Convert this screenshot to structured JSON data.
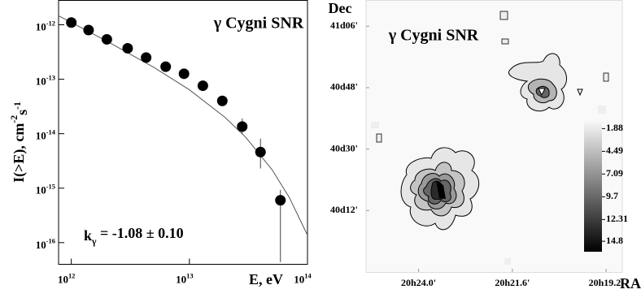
{
  "chart_data": [
    {
      "type": "scatter",
      "title": "γ Cygni SNR",
      "x_label": "E, eV",
      "y_label": [
        "I(>E), cm",
        "-2",
        "s",
        "-1"
      ],
      "annotation": [
        "k",
        "γ",
        " = -1.08 ± 0.10"
      ],
      "log_x": true,
      "log_y": true,
      "color": "#000000",
      "xlim": [
        780000000000.0,
        100000000000000.0
      ],
      "ylim": [
        4e-17,
        2.8e-12
      ],
      "xticks": [
        {
          "value": 1000000000000.0,
          "label": "10",
          "sup": "12"
        },
        {
          "value": 10000000000000.0,
          "label": "10",
          "sup": "13"
        },
        {
          "value": 100000000000000.0,
          "label": "10",
          "sup": "14"
        }
      ],
      "yticks": [
        {
          "value": 1e-12,
          "label": "10",
          "sup": "-12"
        },
        {
          "value": 1e-13,
          "label": "10",
          "sup": "-13"
        },
        {
          "value": 1e-14,
          "label": "10",
          "sup": "-14"
        },
        {
          "value": 1e-15,
          "label": "10",
          "sup": "-15"
        },
        {
          "value": 1e-16,
          "label": "10",
          "sup": "-16"
        }
      ],
      "x": [
        1000000000000.0,
        1400000000000.0,
        2000000000000.0,
        3000000000000.0,
        4300000000000.0,
        6300000000000.0,
        9000000000000.0,
        13000000000000.0,
        19000000000000.0,
        28000000000000.0,
        40000000000000.0,
        59000000000000.0
      ],
      "values": [
        1.1e-12,
        8e-13,
        5.4e-13,
        3.7e-13,
        2.5e-13,
        1.7e-13,
        1.26e-13,
        7.6e-14,
        4e-14,
        1.35e-14,
        4.6e-15,
        6e-16
      ],
      "y_upper": [
        null,
        null,
        null,
        null,
        null,
        null,
        null,
        null,
        null,
        1.9e-14,
        8.1e-15,
        9.3e-16
      ],
      "y_lower": [
        null,
        null,
        null,
        null,
        null,
        null,
        null,
        null,
        null,
        9.8e-15,
        2.3e-15,
        4.4e-17
      ],
      "fit": {
        "x": [
          780000000000.0,
          1000000000000.0,
          2000000000000.0,
          5000000000000.0,
          10000000000000.0,
          20000000000000.0,
          30000000000000.0,
          50000000000000.0,
          70000000000000.0,
          100000000000000.0
        ],
        "values": [
          1.46e-12,
          1.1e-12,
          5e-13,
          1.65e-13,
          6.4e-14,
          2e-14,
          8.6e-15,
          2.2e-15,
          6.8e-16,
          1.37e-16
        ]
      }
    },
    {
      "type": "contour",
      "title": "γ Cygni SNR",
      "x_label": "RA",
      "y_label": "Dec",
      "xlim": [
        20.4224,
        20.3131
      ],
      "ylim": [
        39.9,
        41.228
      ],
      "xticks": [
        {
          "value": 20.4,
          "label": "20h24.0'"
        },
        {
          "value": 20.36,
          "label": "20h21.6'"
        },
        {
          "value": 20.32,
          "label": "20h19.2'"
        }
      ],
      "yticks": [
        {
          "value": 41.1,
          "label": "41d06'"
        },
        {
          "value": 40.8,
          "label": "40d48'"
        },
        {
          "value": 40.5,
          "label": "40d30'"
        },
        {
          "value": 40.2,
          "label": "40d12'"
        }
      ],
      "clim": [
        1.1,
        16.0
      ],
      "colorbar_ticks": [
        1.88,
        4.49,
        7.09,
        9.7,
        12.31,
        14.8
      ]
    }
  ]
}
